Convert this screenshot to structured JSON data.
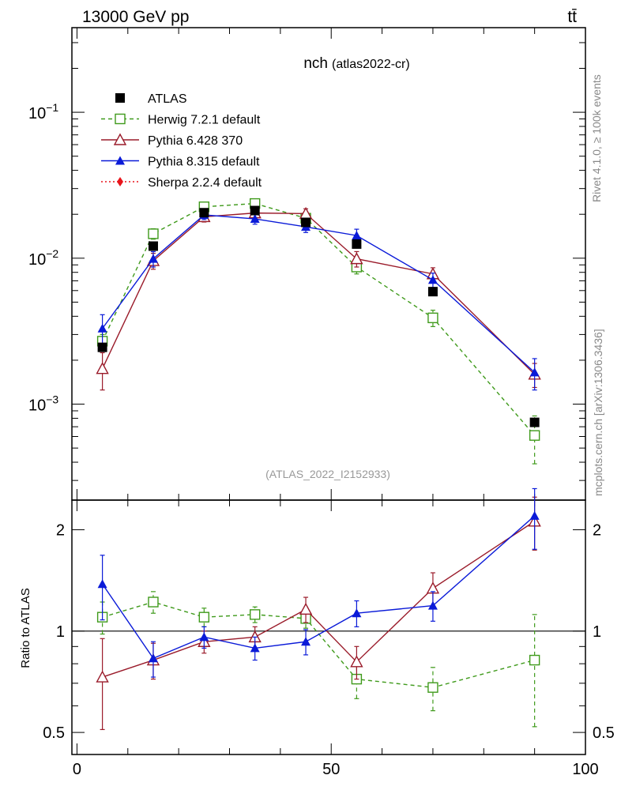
{
  "header": {
    "energy_label": "13000 GeV pp",
    "process_label": "tt̄"
  },
  "side_labels": {
    "rivet": "Rivet 4.1.0, ≥ 100k events",
    "mcplots": "mcplots.cern.ch [arXiv:1306.3436]"
  },
  "chart_data": {
    "type": "scatter",
    "title": "nch",
    "subtitle": "(atlas2022-cr)",
    "analysis_label": "(ATLAS_2022_I2152933)",
    "x_ticks": [
      "0",
      "50",
      "100"
    ],
    "xlim": [
      -1,
      100
    ],
    "main_y_scale": "log",
    "main_ylim": [
      0.00022,
      0.38
    ],
    "main_y_ticks": [
      {
        "value": 0.1,
        "base": "10",
        "exp": "−1"
      },
      {
        "value": 0.01,
        "base": "10",
        "exp": "−2"
      },
      {
        "value": 0.001,
        "base": "10",
        "exp": "−3"
      }
    ],
    "ratio_ylabel": "Ratio to ATLAS",
    "ratio_y_scale": "log",
    "ratio_ylim": [
      0.43,
      2.45
    ],
    "ratio_y_ticks": [
      "2",
      "1",
      "0.5"
    ],
    "x": [
      5,
      15,
      25,
      35,
      45,
      55,
      70,
      90
    ],
    "data": {
      "name": "ATLAS",
      "color": "#000000",
      "values": [
        0.00245,
        0.0121,
        0.0205,
        0.0212,
        0.0176,
        0.0125,
        0.0059,
        0.00075
      ]
    },
    "series": [
      {
        "name": "Herwig 7.2.1 default",
        "color": "#3f9a1b",
        "marker": "open-square",
        "dashed": true,
        "values": [
          0.0027,
          0.0147,
          0.0225,
          0.0237,
          0.0188,
          0.0087,
          0.0039,
          0.00061
        ],
        "errors": [
          0.0003,
          0.0012,
          0.0015,
          0.0014,
          0.0014,
          0.0009,
          0.0005,
          0.00022
        ],
        "ratio": [
          1.1,
          1.22,
          1.1,
          1.12,
          1.09,
          0.72,
          0.68,
          0.82
        ],
        "ratio_errors": [
          0.12,
          0.09,
          0.07,
          0.06,
          0.07,
          0.09,
          0.1,
          0.3
        ]
      },
      {
        "name": "Pythia 6.428 370",
        "color": "#9a1b2a",
        "marker": "open-triangle",
        "dashed": false,
        "values": [
          0.00175,
          0.0096,
          0.0192,
          0.0204,
          0.0202,
          0.0099,
          0.0078,
          0.0016
        ],
        "errors": [
          0.0005,
          0.0012,
          0.0015,
          0.0014,
          0.0016,
          0.0012,
          0.0008,
          0.0003
        ],
        "ratio": [
          0.73,
          0.82,
          0.93,
          0.96,
          1.16,
          0.81,
          1.34,
          2.12
        ],
        "ratio_errors": [
          0.22,
          0.1,
          0.07,
          0.07,
          0.1,
          0.09,
          0.15,
          0.38
        ]
      },
      {
        "name": "Pythia 8.315 default",
        "color": "#0a1ad8",
        "marker": "filled-triangle",
        "dashed": false,
        "values": [
          0.0033,
          0.0099,
          0.0198,
          0.0186,
          0.0164,
          0.0143,
          0.0071,
          0.00165
        ],
        "errors": [
          0.0008,
          0.0012,
          0.0014,
          0.0015,
          0.0014,
          0.0015,
          0.0008,
          0.0004
        ],
        "ratio": [
          1.38,
          0.83,
          0.96,
          0.89,
          0.93,
          1.13,
          1.19,
          2.2
        ],
        "ratio_errors": [
          0.3,
          0.1,
          0.07,
          0.07,
          0.08,
          0.1,
          0.12,
          0.45
        ]
      },
      {
        "name": "Sherpa 2.2.4 default",
        "color": "#e8141b",
        "marker": "filled-diamond",
        "dashed": true,
        "dotted": true,
        "values": [],
        "errors": [],
        "ratio": [],
        "ratio_errors": []
      }
    ],
    "legend_position": "top-left"
  }
}
